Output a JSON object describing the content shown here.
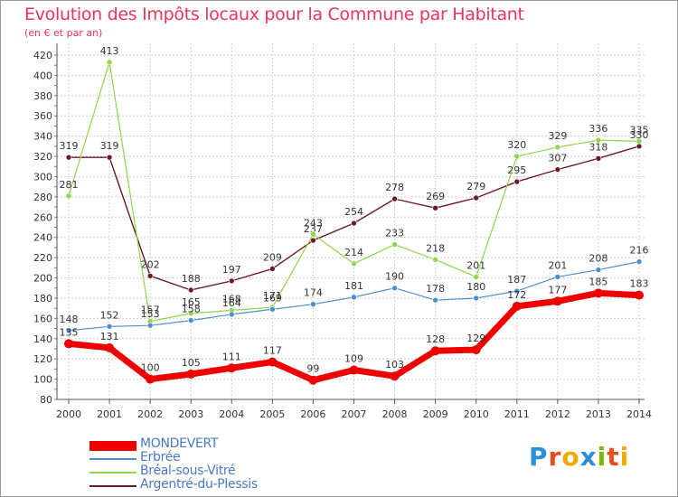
{
  "title": "Evolution des Impôts locaux pour la Commune par Habitant",
  "subtitle": "(en € et par an)",
  "brand": {
    "letters": [
      "P",
      "r",
      "o",
      "x",
      "i",
      "t",
      "i"
    ],
    "colors": [
      "#2a8fd6",
      "#e84e1b",
      "#f2a900",
      "#2a8fd6",
      "#7ab800",
      "#e84e1b",
      "#f2a900"
    ]
  },
  "chart_data": {
    "type": "line",
    "title": "Evolution des Impôts locaux pour la Commune par Habitant",
    "subtitle": "(en € et par an)",
    "x": [
      2000,
      2001,
      2002,
      2003,
      2004,
      2005,
      2006,
      2007,
      2008,
      2009,
      2010,
      2011,
      2012,
      2013,
      2014
    ],
    "ylim": [
      80,
      420
    ],
    "yticks": [
      80,
      100,
      120,
      140,
      160,
      180,
      200,
      220,
      240,
      260,
      280,
      300,
      320,
      340,
      360,
      380,
      400,
      420
    ],
    "grid": true,
    "legend": "bottom-left",
    "series": [
      {
        "name": "Argentré-du-Plessis",
        "color": "#6e1a22",
        "values": [
          319,
          319,
          202,
          188,
          197,
          209,
          237,
          254,
          278,
          269,
          279,
          295,
          307,
          318,
          330
        ]
      },
      {
        "name": "Bréal-sous-Vitré",
        "color": "#8fd64a",
        "values": [
          281,
          413,
          157,
          165,
          168,
          171,
          243,
          214,
          233,
          218,
          201,
          320,
          329,
          336,
          335
        ]
      },
      {
        "name": "Erbrée",
        "color": "#4a90d0",
        "values": [
          148,
          152,
          153,
          158,
          164,
          169,
          174,
          181,
          190,
          178,
          180,
          187,
          201,
          208,
          216
        ]
      },
      {
        "name": "MONDEVERT",
        "color": "#ee0000",
        "values": [
          135,
          131,
          100,
          105,
          111,
          117,
          99,
          109,
          103,
          128,
          129,
          172,
          177,
          185,
          183
        ]
      }
    ],
    "legend_order": [
      "MONDEVERT",
      "Erbrée",
      "Bréal-sous-Vitré",
      "Argentré-du-Plessis"
    ]
  }
}
